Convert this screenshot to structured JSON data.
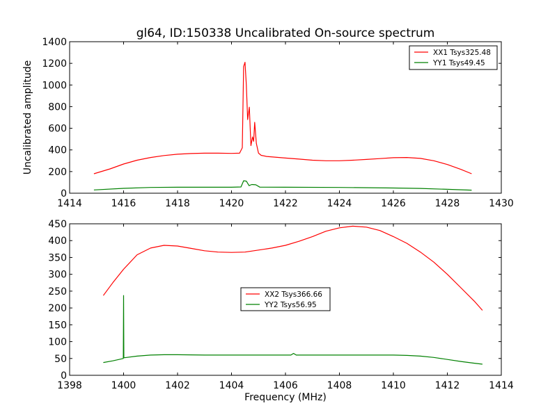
{
  "chart_data": [
    {
      "type": "line",
      "title": "gl64, ID:150338 Uncalibrated On-source spectrum",
      "xlabel": "",
      "ylabel": "Uncalibrated amplitude",
      "xlim": [
        1414,
        1430
      ],
      "ylim": [
        0,
        1400
      ],
      "xticks": [
        1414,
        1416,
        1418,
        1420,
        1422,
        1424,
        1426,
        1428,
        1430
      ],
      "yticks": [
        0,
        200,
        400,
        600,
        800,
        1000,
        1200,
        1400
      ],
      "grid": false,
      "legend_position": "top-right",
      "series": [
        {
          "name": "XX1 Tsys325.48",
          "color": "#ff0000",
          "x": [
            1414.9,
            1415.5,
            1416,
            1416.5,
            1417,
            1417.5,
            1418,
            1418.5,
            1419,
            1419.5,
            1420,
            1420.3,
            1420.4,
            1420.45,
            1420.5,
            1420.55,
            1420.6,
            1420.66,
            1420.72,
            1420.78,
            1420.82,
            1420.86,
            1420.92,
            1421,
            1421.1,
            1421.3,
            1422,
            1422.5,
            1423,
            1423.5,
            1424,
            1424.5,
            1425,
            1425.5,
            1426,
            1426.5,
            1427,
            1427.5,
            1428,
            1428.5,
            1428.9
          ],
          "y": [
            180,
            225,
            270,
            305,
            330,
            348,
            360,
            367,
            370,
            370,
            368,
            370,
            420,
            1170,
            1210,
            1000,
            680,
            795,
            440,
            520,
            480,
            655,
            460,
            370,
            350,
            340,
            325,
            315,
            305,
            300,
            300,
            305,
            312,
            320,
            328,
            330,
            322,
            300,
            265,
            220,
            180
          ]
        },
        {
          "name": "YY1 Tsys49.45",
          "color": "#008000",
          "x": [
            1414.9,
            1416,
            1417,
            1418,
            1419,
            1420,
            1420.35,
            1420.45,
            1420.55,
            1420.65,
            1420.75,
            1420.9,
            1421.05,
            1422,
            1424,
            1426,
            1427,
            1428,
            1428.9
          ],
          "y": [
            30,
            45,
            53,
            55,
            55,
            55,
            58,
            115,
            112,
            70,
            80,
            78,
            56,
            55,
            53,
            48,
            44,
            36,
            28
          ]
        }
      ]
    },
    {
      "type": "line",
      "title": "",
      "xlabel": "Frequency (MHz)",
      "ylabel": "",
      "xlim": [
        1398,
        1414
      ],
      "ylim": [
        0,
        450
      ],
      "xticks": [
        1398,
        1400,
        1402,
        1404,
        1406,
        1408,
        1410,
        1412,
        1414
      ],
      "yticks": [
        0,
        50,
        100,
        150,
        200,
        250,
        300,
        350,
        400,
        450
      ],
      "grid": false,
      "legend_position": "center",
      "series": [
        {
          "name": "XX2 Tsys366.66",
          "color": "#ff0000",
          "x": [
            1399.25,
            1399.6,
            1400,
            1400.5,
            1401,
            1401.5,
            1402,
            1402.5,
            1403,
            1403.5,
            1404,
            1404.5,
            1405,
            1405.5,
            1406,
            1406.5,
            1407,
            1407.5,
            1408,
            1408.5,
            1409,
            1409.5,
            1410,
            1410.5,
            1411,
            1411.5,
            1412,
            1412.5,
            1413,
            1413.3
          ],
          "y": [
            237,
            275,
            315,
            358,
            378,
            386,
            384,
            377,
            370,
            366,
            365,
            366,
            372,
            378,
            386,
            398,
            412,
            428,
            438,
            443,
            440,
            430,
            412,
            392,
            366,
            336,
            300,
            260,
            220,
            193
          ]
        },
        {
          "name": "YY2 Tsys56.95",
          "color": "#008000",
          "x": [
            1399.25,
            1399.6,
            1399.99,
            1400,
            1400.01,
            1400.5,
            1401,
            1401.5,
            1402,
            1403,
            1404,
            1405,
            1406.2,
            1406.3,
            1406.4,
            1407,
            1408,
            1409,
            1410,
            1410.5,
            1411,
            1411.5,
            1412,
            1412.5,
            1413,
            1413.3
          ],
          "y": [
            38,
            43,
            50,
            237,
            52,
            57,
            60,
            61,
            61,
            60,
            60,
            60,
            60,
            65,
            60,
            60,
            60,
            60,
            60,
            59,
            57,
            53,
            47,
            41,
            36,
            33
          ]
        }
      ]
    }
  ]
}
